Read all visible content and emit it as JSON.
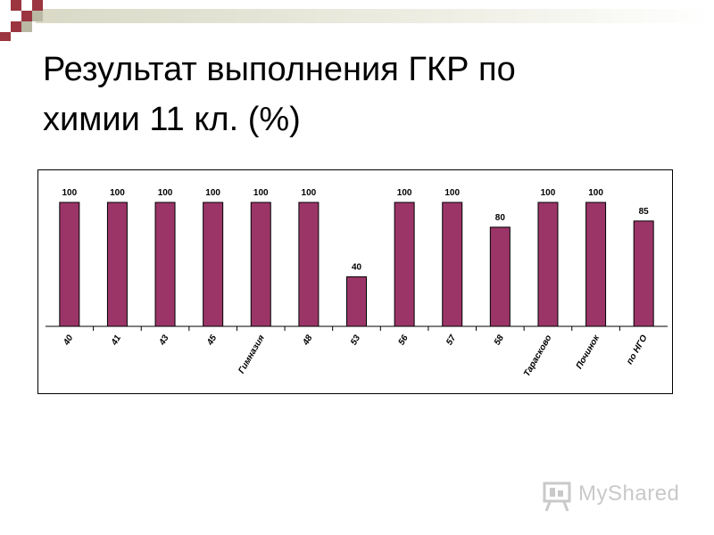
{
  "slide": {
    "title_line1": "Результат выполнения ГКР по",
    "title_line2": "химии 11 кл. (%)",
    "logo_text": "MyShared",
    "accent_color": "#9b3568"
  },
  "chart_data": {
    "type": "bar",
    "title": "",
    "xlabel": "",
    "ylabel": "",
    "categories": [
      "40",
      "41",
      "43",
      "45",
      "Гимназия",
      "48",
      "53",
      "56",
      "57",
      "58",
      "Тарасково",
      "Починок",
      "по НГО"
    ],
    "values": [
      100,
      100,
      100,
      100,
      100,
      100,
      40,
      100,
      100,
      80,
      100,
      100,
      85
    ],
    "value_labels": [
      "100",
      "100",
      "100",
      "100",
      "100",
      "100",
      "40",
      "100",
      "100",
      "80",
      "100",
      "100",
      "85"
    ],
    "ylim": [
      0,
      100
    ],
    "grid": false,
    "legend": "none",
    "bar_color": "#9b3568"
  }
}
